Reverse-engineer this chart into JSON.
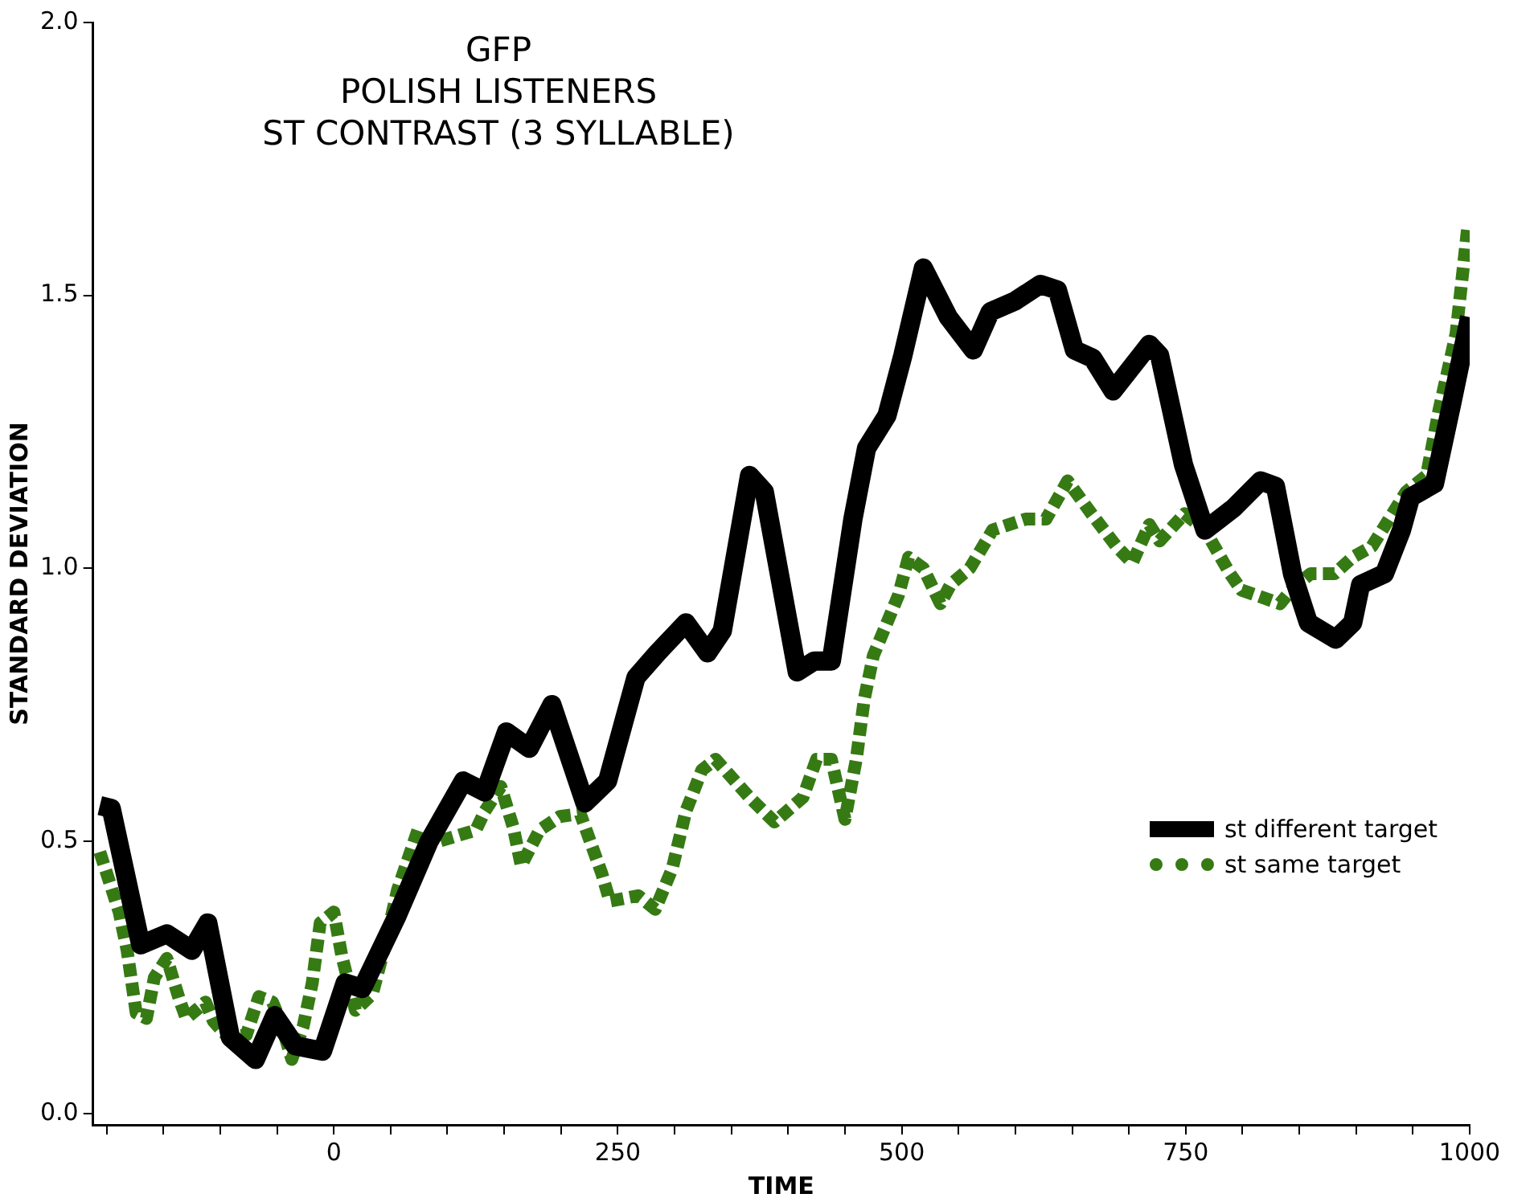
{
  "chart_data": {
    "type": "line",
    "title": "GFP\nPOLISH LISTENERS\nST CONTRAST (3 SYLLABLE)",
    "xlabel": "TIME",
    "ylabel": "STANDARD DEVIATION",
    "xlim": [
      -212,
      1000
    ],
    "xticks": [
      {
        "value": -200,
        "label": null
      },
      {
        "value": -150,
        "label": null
      },
      {
        "value": -100,
        "label": null
      },
      {
        "value": -50,
        "label": null
      },
      0,
      {
        "value": 50,
        "label": null
      },
      {
        "value": 100,
        "label": null
      },
      {
        "value": 150,
        "label": null
      },
      {
        "value": 200,
        "label": null
      },
      250,
      {
        "value": 300,
        "label": null
      },
      {
        "value": 350,
        "label": null
      },
      {
        "value": 400,
        "label": null
      },
      {
        "value": 450,
        "label": null
      },
      500,
      {
        "value": 550,
        "label": null
      },
      {
        "value": 600,
        "label": null
      },
      {
        "value": 650,
        "label": null
      },
      {
        "value": 700,
        "label": null
      },
      750,
      {
        "value": 800,
        "label": null
      },
      {
        "value": 850,
        "label": null
      },
      {
        "value": 900,
        "label": null
      },
      {
        "value": 950,
        "label": null
      },
      1000
    ],
    "ylim": [
      -0.02,
      2.0
    ],
    "yticks": [
      {
        "value": 0,
        "label": "0.0"
      },
      0.5,
      {
        "value": 1,
        "label": "1.0"
      },
      1.5,
      {
        "value": 2,
        "label": "2.0"
      }
    ],
    "grid": false,
    "legend": "right",
    "marker": "none",
    "series": [
      {
        "name": "st different target",
        "color": "#000000",
        "line_style": "solid",
        "x": [
          -206,
          -196,
          -170,
          -147,
          -125,
          -111,
          -91,
          -69,
          -52,
          -34,
          -10,
          10,
          25,
          55,
          84,
          114,
          133,
          152,
          172,
          192,
          221,
          241,
          266,
          285,
          310,
          329,
          342,
          366,
          379,
          408,
          423,
          438,
          457,
          469,
          487,
          501,
          519,
          541,
          563,
          578,
          600,
          622,
          637,
          652,
          668,
          686,
          718,
          727,
          748,
          767,
          792,
          816,
          829,
          844,
          858,
          882,
          897,
          904,
          925,
          940,
          948,
          969,
          984,
          1000
        ],
        "values": [
          0.565,
          0.56,
          0.31,
          0.33,
          0.3,
          0.35,
          0.14,
          0.1,
          0.18,
          0.125,
          0.115,
          0.24,
          0.23,
          0.36,
          0.5,
          0.61,
          0.59,
          0.7,
          0.67,
          0.75,
          0.57,
          0.61,
          0.8,
          0.845,
          0.9,
          0.845,
          0.885,
          1.17,
          1.14,
          0.81,
          0.83,
          0.83,
          1.09,
          1.22,
          1.28,
          1.39,
          1.55,
          1.46,
          1.4,
          1.47,
          1.49,
          1.52,
          1.51,
          1.4,
          1.385,
          1.325,
          1.41,
          1.39,
          1.19,
          1.07,
          1.11,
          1.16,
          1.15,
          0.99,
          0.9,
          0.87,
          0.9,
          0.97,
          0.99,
          1.07,
          1.13,
          1.155,
          1.3,
          1.46
        ]
      },
      {
        "name": "st same target",
        "color": "#367a14",
        "line_style": "dotted",
        "x": [
          -206,
          -189,
          -182,
          -174,
          -165,
          -158,
          -147,
          -136,
          -130,
          -113,
          -106,
          -93,
          -77,
          -66,
          -54,
          -47,
          -37,
          -27,
          -19,
          -12,
          0,
          7,
          19,
          34,
          44,
          56,
          74,
          93,
          125,
          133,
          147,
          158,
          165,
          181,
          199,
          217,
          236,
          243,
          268,
          283,
          298,
          310,
          324,
          336,
          366,
          388,
          413,
          425,
          438,
          450,
          460,
          467,
          475,
          497,
          506,
          519,
          534,
          543,
          560,
          580,
          609,
          627,
          646,
          667,
          689,
          703,
          718,
          727,
          749,
          767,
          789,
          799,
          833,
          845,
          860,
          881,
          897,
          914,
          926,
          944,
          962,
          973,
          988,
          998
        ],
        "values": [
          0.48,
          0.37,
          0.3,
          0.185,
          0.175,
          0.25,
          0.285,
          0.21,
          0.175,
          0.205,
          0.17,
          0.14,
          0.145,
          0.215,
          0.205,
          0.17,
          0.1,
          0.16,
          0.24,
          0.35,
          0.37,
          0.29,
          0.19,
          0.22,
          0.3,
          0.41,
          0.52,
          0.5,
          0.52,
          0.555,
          0.6,
          0.525,
          0.455,
          0.52,
          0.545,
          0.55,
          0.44,
          0.39,
          0.4,
          0.375,
          0.45,
          0.555,
          0.63,
          0.65,
          0.58,
          0.535,
          0.58,
          0.65,
          0.65,
          0.54,
          0.65,
          0.76,
          0.84,
          0.95,
          1.02,
          1.0,
          0.935,
          0.97,
          1.0,
          1.07,
          1.09,
          1.09,
          1.16,
          1.1,
          1.04,
          1.01,
          1.08,
          1.05,
          1.1,
          1.07,
          0.99,
          0.96,
          0.935,
          0.965,
          0.99,
          0.99,
          1.02,
          1.04,
          1.08,
          1.14,
          1.17,
          1.29,
          1.43,
          1.62
        ]
      }
    ]
  }
}
